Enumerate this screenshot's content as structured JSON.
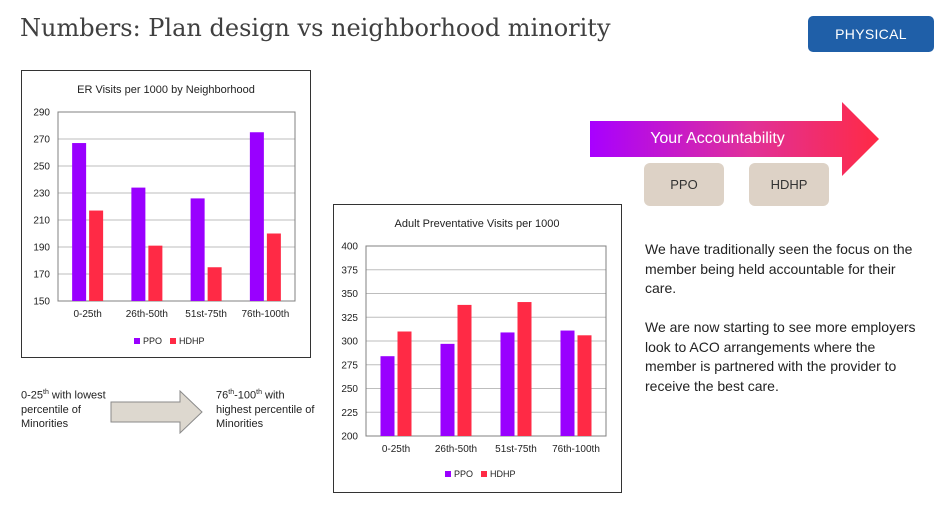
{
  "header": {
    "title": "Numbers: Plan design vs neighborhood minority",
    "badge": "PHYSICAL"
  },
  "chart_data": [
    {
      "type": "bar",
      "title": "ER Visits per 1000 by Neighborhood",
      "categories": [
        "0-25th",
        "26th-50th",
        "51st-75th",
        "76th-100th"
      ],
      "series": [
        {
          "name": "PPO",
          "values": [
            267,
            234,
            226,
            275
          ],
          "color": "#9900ff"
        },
        {
          "name": "HDHP",
          "values": [
            217,
            191,
            175,
            200
          ],
          "color": "#ff2a45"
        }
      ],
      "ylim": [
        150,
        290
      ],
      "yticks": [
        150,
        170,
        190,
        210,
        230,
        250,
        270,
        290
      ],
      "legend": "bottom"
    },
    {
      "type": "bar",
      "title": "Adult Preventative Visits per 1000",
      "categories": [
        "0-25th",
        "26th-50th",
        "51st-75th",
        "76th-100th"
      ],
      "series": [
        {
          "name": "PPO",
          "values": [
            284,
            297,
            309,
            311
          ],
          "color": "#9900ff"
        },
        {
          "name": "HDHP",
          "values": [
            310,
            338,
            341,
            306
          ],
          "color": "#ff2a45"
        }
      ],
      "ylim": [
        200,
        400
      ],
      "yticks": [
        200,
        225,
        250,
        275,
        300,
        325,
        350,
        375,
        400
      ],
      "legend": "bottom"
    }
  ],
  "accountability": {
    "label": "Your Accountability",
    "ppo": "PPO",
    "hdhp": "HDHP"
  },
  "text": {
    "para1": "We have traditionally seen the focus on the member being held accountable for their care.",
    "para2": "We are now starting to see more employers look to ACO arrangements where the member is partnered with the provider to receive the best care."
  },
  "notes": {
    "left_a": "0-25",
    "left_sup": "th",
    "left_b": " with lowest percentile of Minorities",
    "right_a": "76",
    "right_sup1": "th",
    "right_mid": "-100",
    "right_sup2": "th",
    "right_b": " with highest percentile of Minorities"
  },
  "colors": {
    "accent": "#1f5fa8",
    "ppo": "#9900ff",
    "hdhp": "#ff2a45"
  }
}
